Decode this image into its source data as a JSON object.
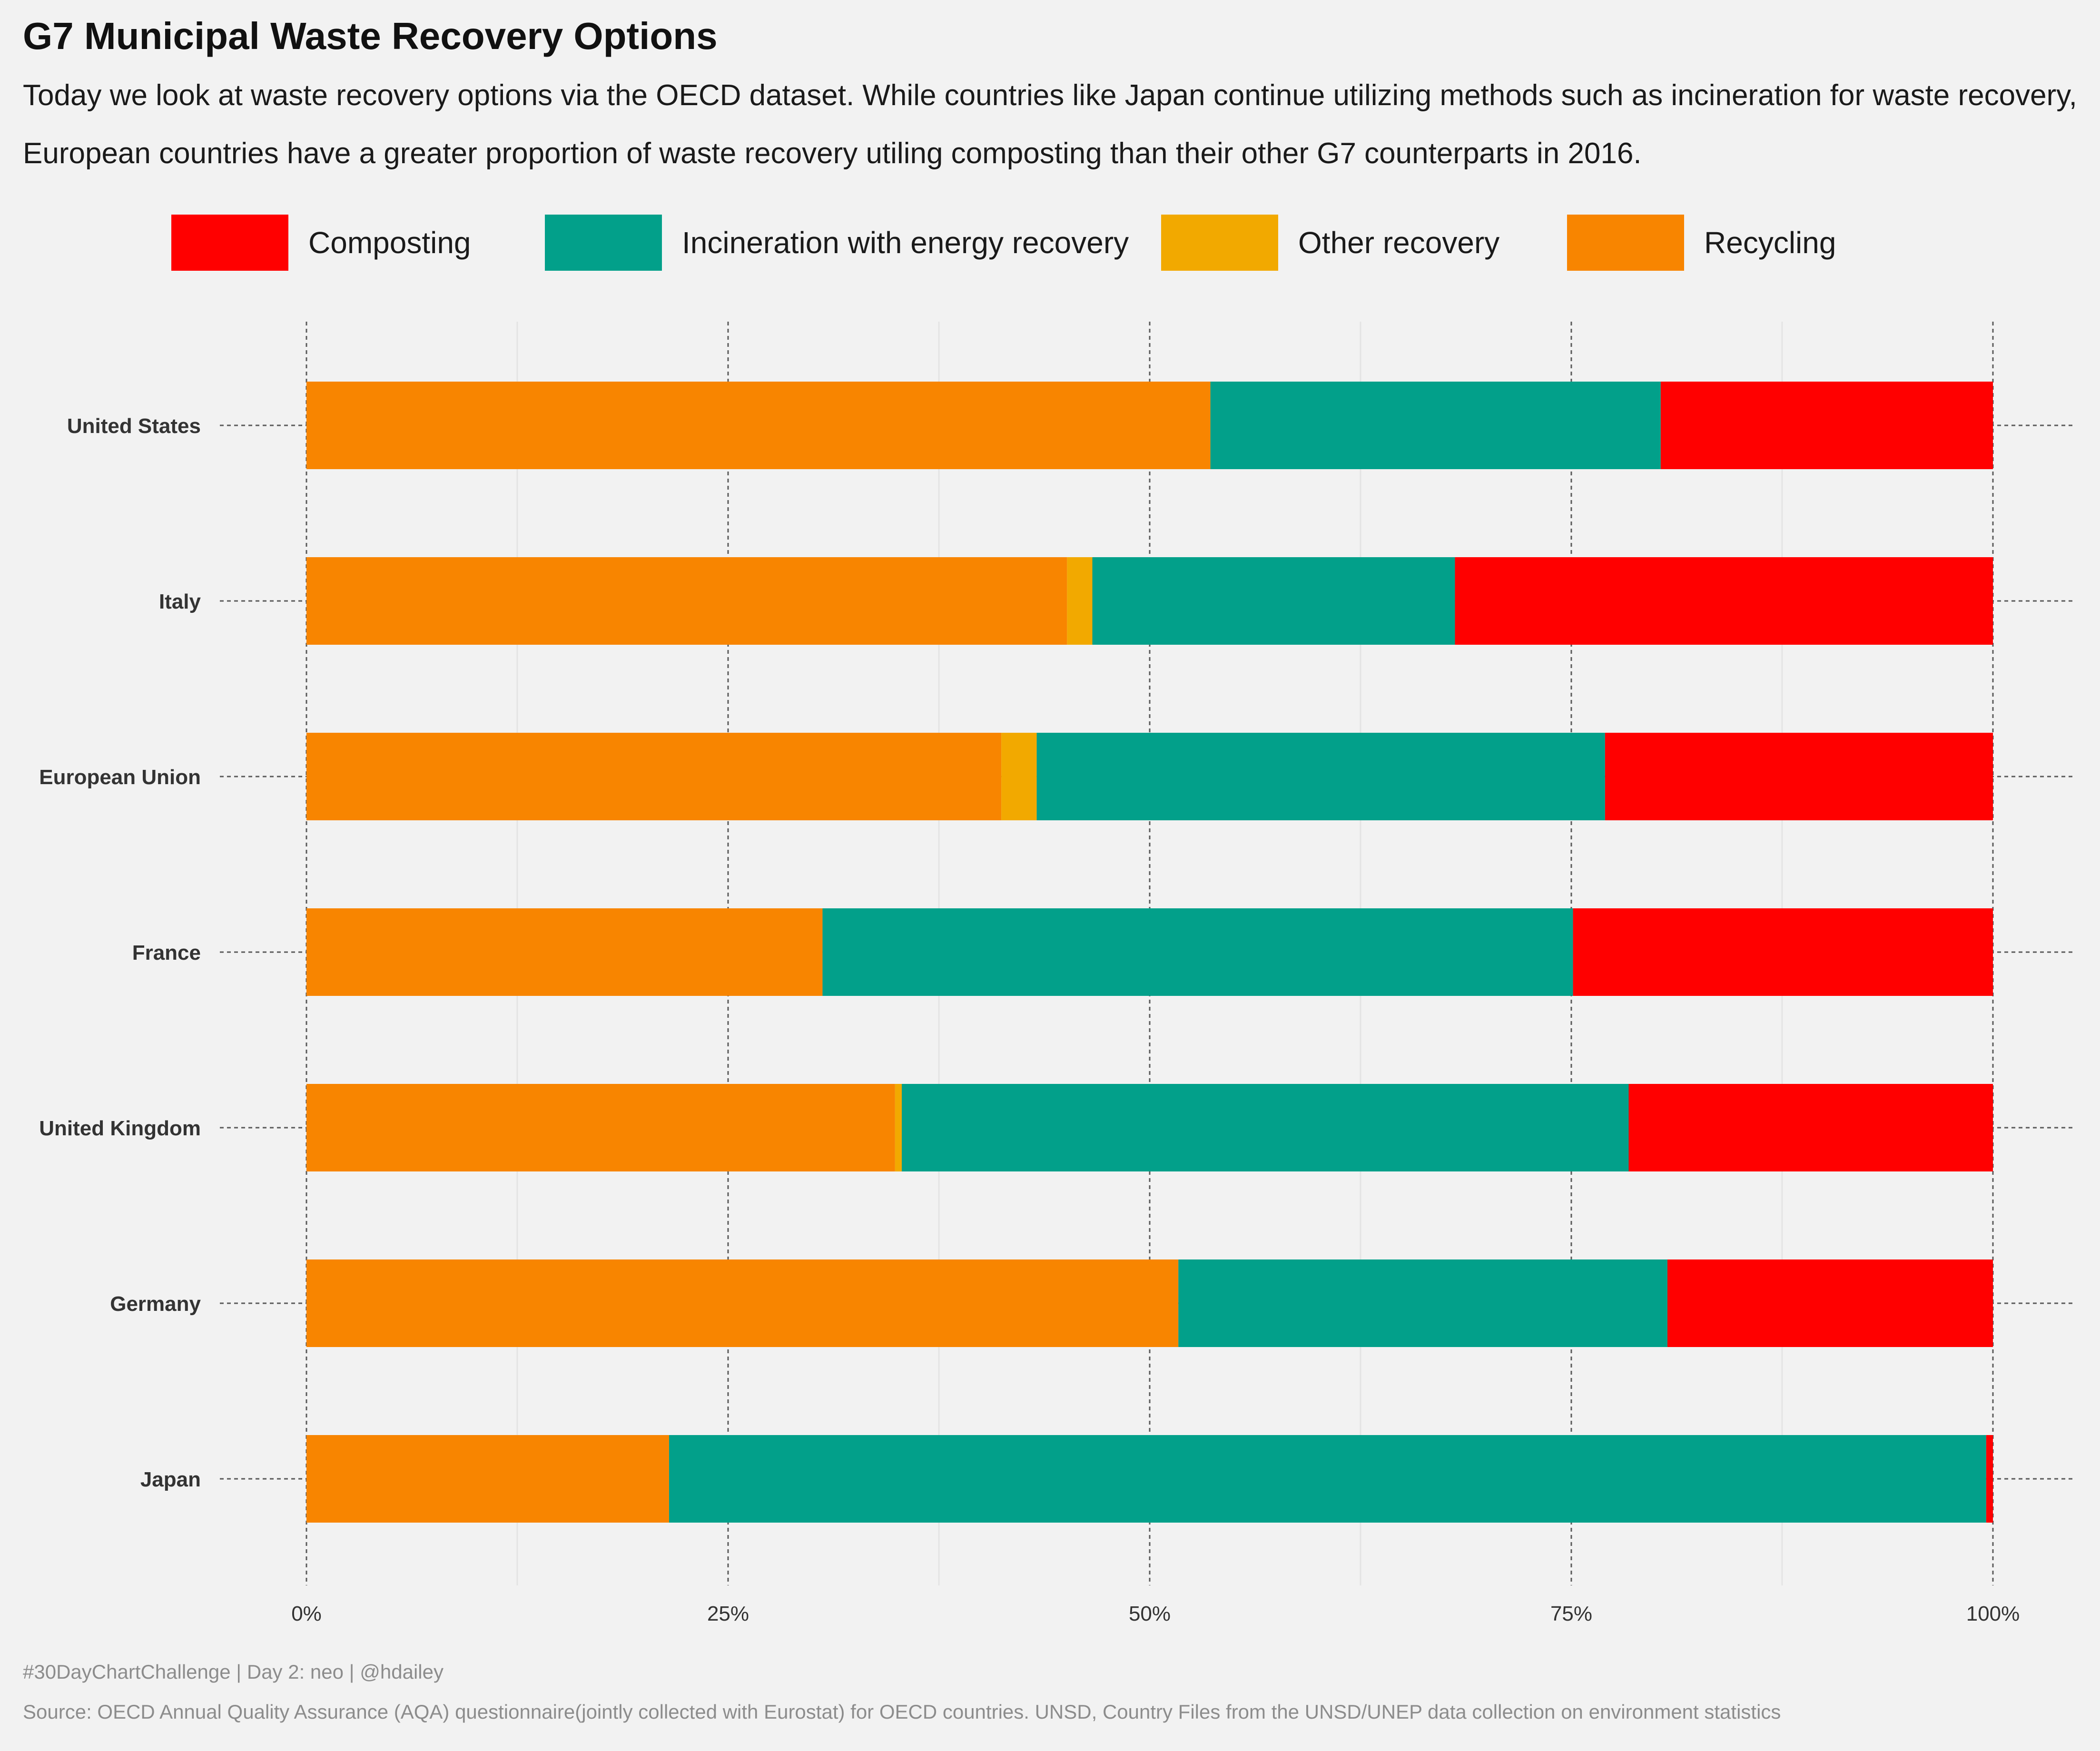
{
  "page": {
    "title": "G7 Municipal Waste Recovery Options",
    "subtitle": "Today we look at waste recovery options via the OECD dataset. While countries like Japan continue utilizing methods such as incineration for waste recovery, European countries have a greater proportion of waste recovery utiling composting than their other G7 counterparts in 2016.",
    "caption_line1": "#30DayChartChallenge | Day 2: neo | @hdailey",
    "caption_line2": "Source: OECD Annual Quality Assurance (AQA) questionnaire(jointly collected with Eurostat) for OECD countries. UNSD, Country Files from the UNSD/UNEP data collection on environment statistics"
  },
  "legend": {
    "position": "top",
    "items": [
      {
        "label": "Composting",
        "color": "#ff0000"
      },
      {
        "label": "Incineration with energy recovery",
        "color": "#02a08a"
      },
      {
        "label": "Other recovery",
        "color": "#f2a900"
      },
      {
        "label": "Recycling",
        "color": "#f88500"
      }
    ]
  },
  "chart_data": {
    "type": "bar",
    "orientation": "horizontal",
    "stacked": true,
    "normalized": true,
    "title": "G7 Municipal Waste Recovery Options",
    "xlabel": "",
    "ylabel": "",
    "xlim": [
      0,
      1
    ],
    "x_ticks": [
      "0%",
      "25%",
      "50%",
      "75%",
      "100%"
    ],
    "grid": true,
    "categories": [
      "United States",
      "Italy",
      "European Union",
      "France",
      "United Kingdom",
      "Germany",
      "Japan"
    ],
    "series": [
      {
        "name": "Recycling",
        "color": "#f88500",
        "values": [
          0.536,
          0.451,
          0.412,
          0.306,
          0.349,
          0.517,
          0.215
        ]
      },
      {
        "name": "Other recovery",
        "color": "#f2a900",
        "values": [
          0.0,
          0.015,
          0.021,
          0.0,
          0.004,
          0.0,
          0.0
        ]
      },
      {
        "name": "Incineration with energy recovery",
        "color": "#02a08a",
        "values": [
          0.267,
          0.215,
          0.337,
          0.445,
          0.431,
          0.29,
          0.781
        ]
      },
      {
        "name": "Composting",
        "color": "#ff0000",
        "values": [
          0.197,
          0.319,
          0.23,
          0.249,
          0.216,
          0.193,
          0.004
        ]
      }
    ]
  }
}
